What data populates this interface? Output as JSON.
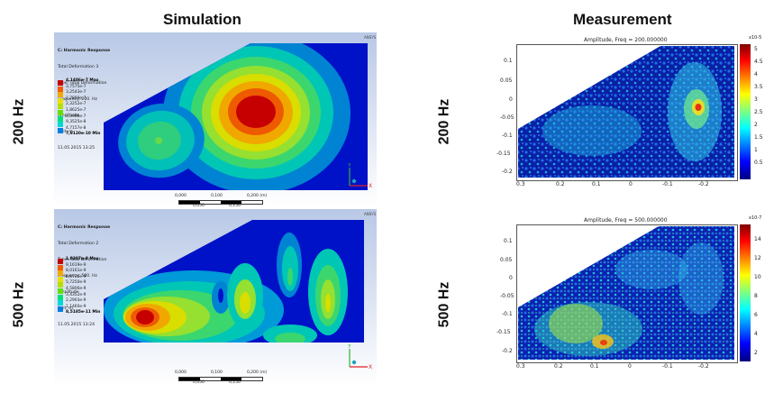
{
  "columns": {
    "simulation": "Simulation",
    "measurement": "Measurement"
  },
  "rows": {
    "row1": "200 Hz",
    "row2": "500 Hz"
  },
  "sim_200": {
    "legend_lines": [
      "C: Harmonic Response",
      "Total Deformation 3",
      "Type: Total Deformation",
      "Frequency: 200. Hz",
      "Amplitude",
      "Unit: m",
      "11.05.2015 13:25"
    ],
    "values": [
      "4,1486e-7 Max",
      "3,7575e-7",
      "3,2543e-7",
      "2,7899e-7",
      "2,3252e-7",
      "1,8625e-7",
      "1,3988e-7",
      "9,3525e-8",
      "4,7157e-8",
      "7,9120e-10 Min"
    ],
    "colors": [
      "#c40000",
      "#f25d00",
      "#f2a900",
      "#e9e000",
      "#b6e000",
      "#61e000",
      "#00e07a",
      "#00d8d8",
      "#007fe0",
      "#0012c8"
    ],
    "scale": [
      "0,000",
      "0,100",
      "0,200 (m)",
      "0,050",
      "0,150"
    ]
  },
  "sim_500": {
    "legend_lines": [
      "C: Harmonic Response",
      "Total Deformation 2",
      "Type: Total Deformation",
      "Frequency: 500. Hz",
      "Amplitude",
      "Unit: m",
      "11.05.2015 13:24"
    ],
    "values": [
      "1,0307e-8 Max",
      "9,1619e-9",
      "8,0161e-9",
      "6,8726e-9",
      "5,7250e-9",
      "4,5806e-9",
      "3,4352e-9",
      "2,2903e-9",
      "1,1460e-9",
      "8,5185e-11 Min"
    ],
    "colors": [
      "#c40000",
      "#f25d00",
      "#f2a900",
      "#e9e000",
      "#b6e000",
      "#61e000",
      "#00e07a",
      "#00d8d8",
      "#007fe0",
      "#0012c8"
    ],
    "scale": [
      "0,000",
      "0,100",
      "0,200 (m)",
      "0,050",
      "0,150"
    ]
  },
  "meas_200": {
    "title": "Amplitude, Freq = 200.000000",
    "yticks": [
      "0.1",
      "0.05",
      "0",
      "-0.05",
      "-0.1",
      "-0.15",
      "-0.2"
    ],
    "xticks": [
      "0.3",
      "0.2",
      "0.1",
      "0",
      "-0.1",
      "-0.2"
    ],
    "cticks": [
      "5",
      "4.5",
      "4",
      "3.5",
      "3",
      "2.5",
      "2",
      "1.5",
      "1",
      "0.5"
    ],
    "exponent": "x10-5"
  },
  "meas_500": {
    "title": "Amplitude, Freq = 500.000000",
    "yticks": [
      "0.1",
      "0.05",
      "0",
      "-0.05",
      "-0.1",
      "-0.15",
      "-0.2"
    ],
    "xticks": [
      "0.3",
      "0.2",
      "0.1",
      "0",
      "-0.1",
      "-0.2"
    ],
    "cticks": [
      "14",
      "12",
      "10",
      "8",
      "6",
      "4",
      "2"
    ],
    "exponent": "x10-7"
  },
  "ansys_logo": "ANSYS"
}
